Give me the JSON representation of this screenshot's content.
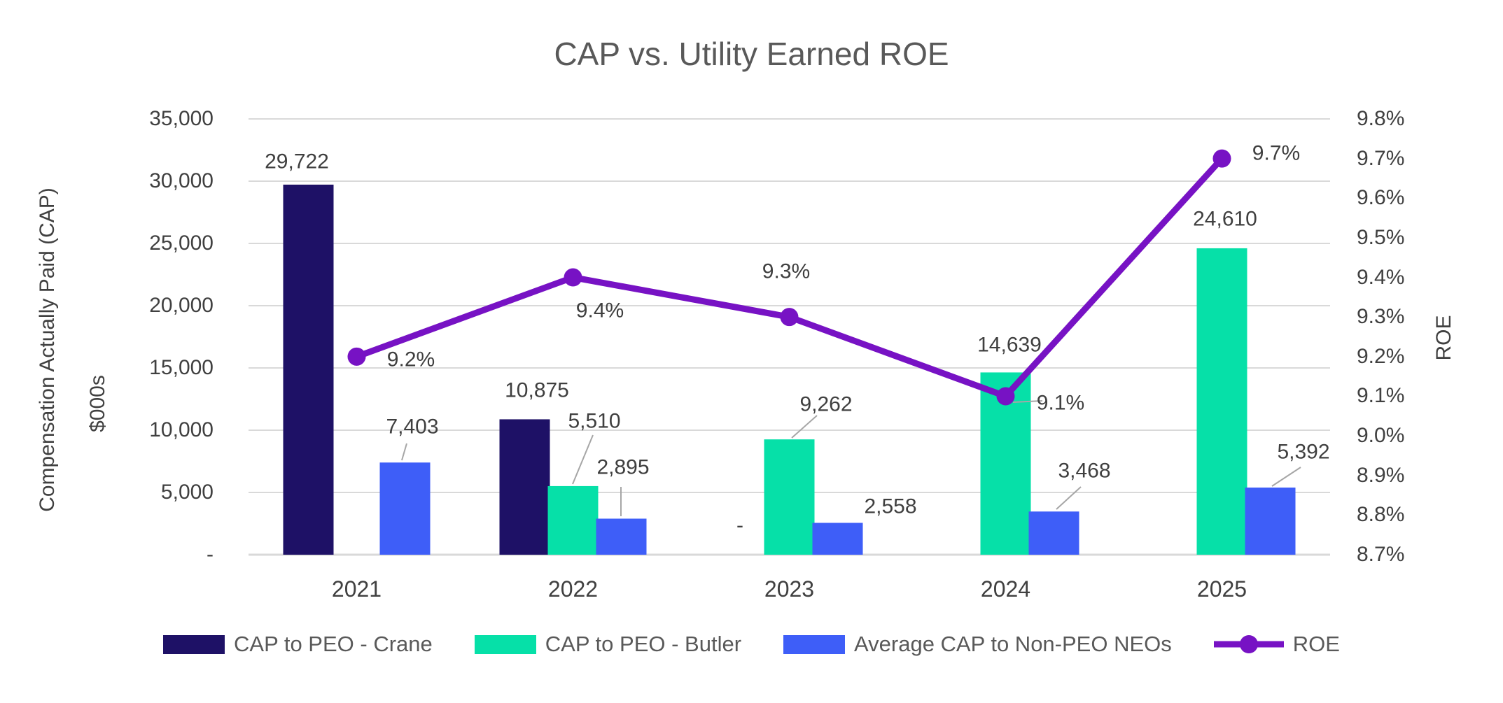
{
  "title": "CAP vs. Utility Earned ROE",
  "left_axis": {
    "title": "Compensation Actually Paid (CAP)",
    "units": "$000s",
    "ticks": [
      "35,000",
      "30,000",
      "25,000",
      "20,000",
      "15,000",
      "10,000",
      "5,000",
      "-"
    ]
  },
  "right_axis": {
    "title": "ROE",
    "ticks": [
      "9.8%",
      "9.7%",
      "9.6%",
      "9.5%",
      "9.4%",
      "9.3%",
      "9.2%",
      "9.1%",
      "9.0%",
      "8.9%",
      "8.8%",
      "8.7%"
    ]
  },
  "colors": {
    "crane": "#1e1166",
    "butler": "#06e0a8",
    "neo": "#3e5ef8",
    "roe": "#7712c4",
    "gridline": "#d9d9d9",
    "leader": "#a6a6a6",
    "title_text": "#595959",
    "axis_text": "#404040"
  },
  "legend": [
    {
      "label": "CAP to PEO - Crane",
      "color": "#1e1166",
      "type": "swatch"
    },
    {
      "label": "CAP to PEO - Butler",
      "color": "#06e0a8",
      "type": "swatch"
    },
    {
      "label": "Average CAP to Non-PEO NEOs",
      "color": "#3e5ef8",
      "type": "swatch"
    },
    {
      "label": "ROE",
      "color": "#7712c4",
      "type": "line"
    }
  ],
  "chart_data": {
    "type": "bar+line",
    "title": "CAP vs. Utility Earned ROE",
    "categories": [
      "2021",
      "2022",
      "2023",
      "2024",
      "2025"
    ],
    "series": [
      {
        "name": "CAP to PEO - Crane",
        "color": "#1e1166",
        "axis": "left",
        "values": [
          29722,
          10875,
          0,
          null,
          null
        ],
        "labels": [
          "29,722",
          "10,875",
          "-",
          "",
          ""
        ]
      },
      {
        "name": "CAP to PEO - Butler",
        "color": "#06e0a8",
        "axis": "left",
        "values": [
          null,
          5510,
          9262,
          14639,
          24610
        ],
        "labels": [
          "",
          "5,510",
          "9,262",
          "14,639",
          "24,610"
        ]
      },
      {
        "name": "Average CAP to Non-PEO NEOs",
        "color": "#3e5ef8",
        "axis": "left",
        "values": [
          7403,
          2895,
          2558,
          3468,
          5392
        ],
        "labels": [
          "7,403",
          "2,895",
          "2,558",
          "3,468",
          "5,392"
        ]
      }
    ],
    "line_series": {
      "name": "ROE",
      "color": "#7712c4",
      "axis": "right",
      "values": [
        9.2,
        9.4,
        9.3,
        9.1,
        9.7
      ],
      "labels": [
        "9.2%",
        "9.4%",
        "9.3%",
        "9.1%",
        "9.7%"
      ]
    },
    "ylabel_left": "Compensation Actually Paid (CAP) $000s",
    "ylabel_right": "ROE",
    "ylim_left": [
      0,
      35000
    ],
    "ylim_right": [
      8.7,
      9.8
    ],
    "grid": true,
    "legend_position": "bottom"
  }
}
